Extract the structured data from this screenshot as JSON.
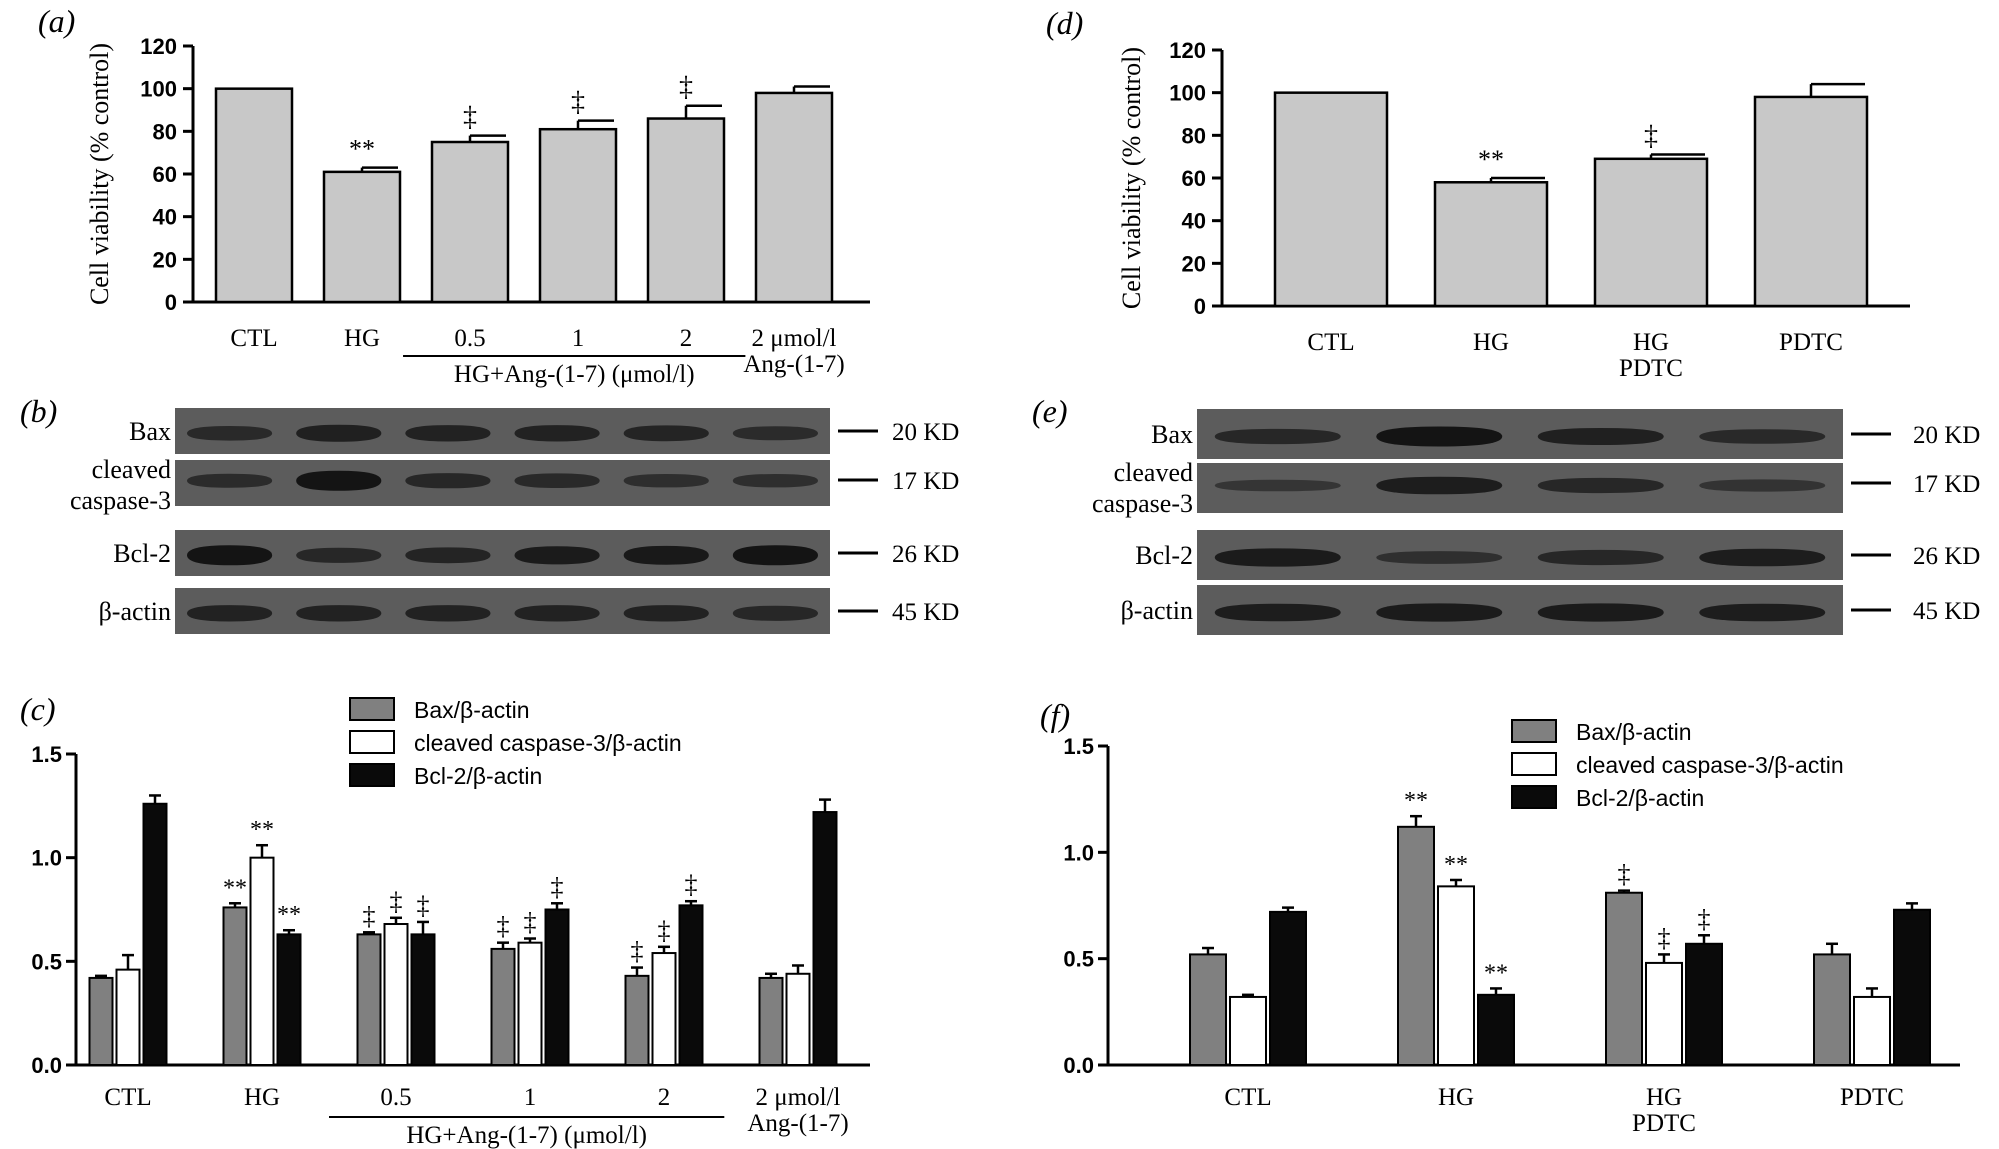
{
  "colors": {
    "bar_gray": "#c8c8c8",
    "bar_dark": "#808080",
    "bar_white": "#ffffff",
    "bar_black": "#0a0a0a",
    "blot_bg": "#5c5c5c",
    "band": "#141414"
  },
  "chart_data": [
    {
      "panel": "(a)",
      "type": "bar",
      "ylabel": "Cell viability (% control)",
      "ylim": [
        0,
        120
      ],
      "yticks": [
        "0",
        "20",
        "40",
        "60",
        "80",
        "100",
        "120"
      ],
      "categories": [
        "CTL",
        "HG",
        "0.5",
        "1",
        "2",
        "2 μmol/l|Ang-(1-7)"
      ],
      "values": [
        100,
        61,
        75,
        81,
        86,
        98
      ],
      "errors": [
        0,
        2,
        3,
        4,
        6,
        3
      ],
      "annotations": [
        "",
        "**",
        "‡",
        "‡",
        "‡",
        ""
      ],
      "group_label": "HG+Ang-(1-7) (μmol/l)"
    },
    {
      "panel": "(d)",
      "type": "bar",
      "ylabel": "Cell viability (% control)",
      "ylim": [
        0,
        120
      ],
      "yticks": [
        "0",
        "20",
        "40",
        "60",
        "80",
        "100",
        "120"
      ],
      "categories": [
        "CTL",
        "HG",
        "HG|PDTC",
        "PDTC"
      ],
      "values": [
        100,
        58,
        69,
        98
      ],
      "errors": [
        0,
        2,
        2,
        6
      ],
      "annotations": [
        "",
        "**",
        "‡",
        ""
      ]
    },
    {
      "panel": "(c)",
      "type": "bar",
      "ylim": [
        0,
        1.5
      ],
      "yticks": [
        "0.0",
        "0.5",
        "1.0",
        "1.5"
      ],
      "categories": [
        "CTL",
        "HG",
        "0.5",
        "1",
        "2",
        "2 μmol/l|Ang-(1-7)"
      ],
      "group_label": "HG+Ang-(1-7) (μmol/l)",
      "series": [
        {
          "name": "Bax/β-actin",
          "values": [
            0.42,
            0.76,
            0.63,
            0.56,
            0.43,
            0.42
          ],
          "errors": [
            0.01,
            0.02,
            0.01,
            0.03,
            0.04,
            0.02
          ],
          "annotations": [
            "",
            "**",
            "‡",
            "‡",
            "‡",
            ""
          ]
        },
        {
          "name": "cleaved caspase-3/β-actin",
          "values": [
            0.46,
            1.0,
            0.68,
            0.59,
            0.54,
            0.44
          ],
          "errors": [
            0.07,
            0.06,
            0.03,
            0.02,
            0.03,
            0.04
          ],
          "annotations": [
            "",
            "**",
            "‡",
            "‡",
            "‡",
            ""
          ]
        },
        {
          "name": "Bcl-2/β-actin",
          "values": [
            1.26,
            0.63,
            0.63,
            0.75,
            0.77,
            1.22
          ],
          "errors": [
            0.04,
            0.02,
            0.06,
            0.03,
            0.02,
            0.06
          ],
          "annotations": [
            "",
            "**",
            "‡",
            "‡",
            "‡",
            ""
          ]
        }
      ]
    },
    {
      "panel": "(f)",
      "type": "bar",
      "ylim": [
        0,
        1.5
      ],
      "yticks": [
        "0.0",
        "0.5",
        "1.0",
        "1.5"
      ],
      "categories": [
        "CTL",
        "HG",
        "HG|PDTC",
        "PDTC"
      ],
      "series": [
        {
          "name": "Bax/β-actin",
          "values": [
            0.52,
            1.12,
            0.81,
            0.52
          ],
          "errors": [
            0.03,
            0.05,
            0.01,
            0.05
          ],
          "annotations": [
            "",
            "**",
            "‡",
            ""
          ]
        },
        {
          "name": "cleaved caspase-3/β-actin",
          "values": [
            0.32,
            0.84,
            0.48,
            0.32
          ],
          "errors": [
            0.01,
            0.03,
            0.04,
            0.04
          ],
          "annotations": [
            "",
            "**",
            "‡",
            ""
          ]
        },
        {
          "name": "Bcl-2/β-actin",
          "values": [
            0.72,
            0.33,
            0.57,
            0.73
          ],
          "errors": [
            0.02,
            0.03,
            0.04,
            0.03
          ],
          "annotations": [
            "",
            "**",
            "‡",
            ""
          ]
        }
      ]
    }
  ],
  "blots": [
    {
      "panel": "(b)",
      "lanes": 6,
      "rows": [
        {
          "label": "Bax",
          "size": "20 KD",
          "intensity": [
            0.55,
            0.75,
            0.7,
            0.7,
            0.65,
            0.5
          ]
        },
        {
          "label": "cleaved|caspase-3",
          "size": "17 KD",
          "intensity": [
            0.5,
            1.0,
            0.6,
            0.55,
            0.45,
            0.45
          ]
        },
        {
          "label": "Bcl-2",
          "size": "26 KD",
          "intensity": [
            1.0,
            0.6,
            0.65,
            0.85,
            0.9,
            1.0
          ]
        },
        {
          "label": "β-actin",
          "size": "45 KD",
          "intensity": [
            0.7,
            0.7,
            0.7,
            0.7,
            0.7,
            0.6
          ]
        }
      ]
    },
    {
      "panel": "(e)",
      "lanes": 4,
      "rows": [
        {
          "label": "Bax",
          "size": "20 KD",
          "intensity": [
            0.6,
            1.0,
            0.75,
            0.55
          ]
        },
        {
          "label": "cleaved|caspase-3",
          "size": "17 KD",
          "intensity": [
            0.3,
            0.8,
            0.6,
            0.35
          ]
        },
        {
          "label": "Bcl-2",
          "size": "26 KD",
          "intensity": [
            0.85,
            0.4,
            0.6,
            0.8
          ]
        },
        {
          "label": "β-actin",
          "size": "45 KD",
          "intensity": [
            0.8,
            0.85,
            0.85,
            0.8
          ]
        }
      ]
    }
  ]
}
